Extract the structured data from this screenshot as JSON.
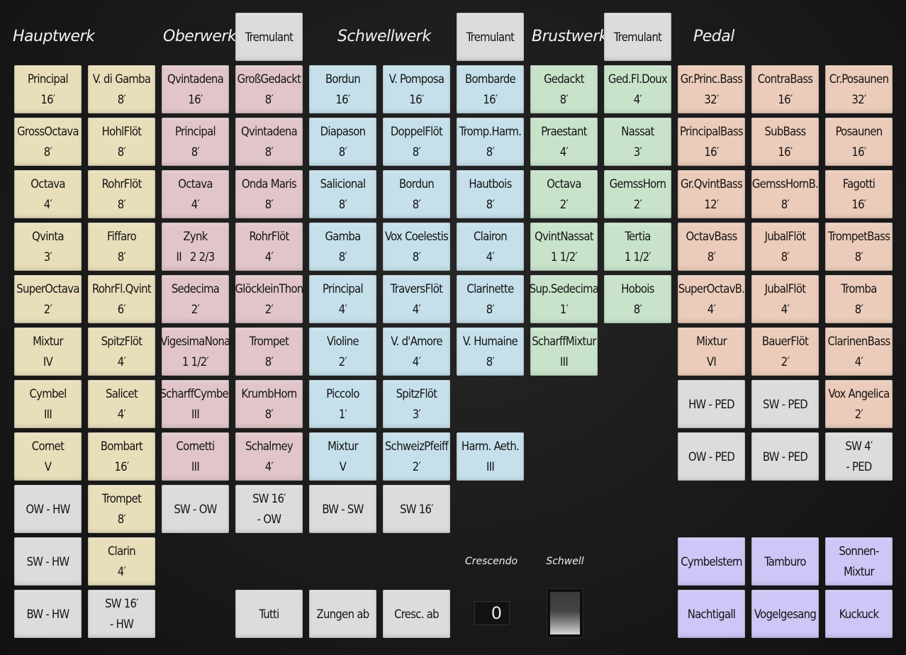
{
  "headers": [
    {
      "id": "hw",
      "text": "Hauptwerk"
    },
    {
      "id": "ow",
      "text": "Oberwerk"
    },
    {
      "id": "sw",
      "text": "Schwellwerk"
    },
    {
      "id": "bw",
      "text": "Brustwerk"
    },
    {
      "id": "ped",
      "text": "Pedal"
    }
  ],
  "tremulants": [
    {
      "label": "Tremulant"
    },
    {
      "label": "Tremulant"
    },
    {
      "label": "Tremulant"
    }
  ],
  "stops": [
    {
      "col": 0,
      "row": 0,
      "color": "yellow",
      "lines": [
        "Principal",
        "16′"
      ]
    },
    {
      "col": 0,
      "row": 1,
      "color": "yellow",
      "lines": [
        "GrossOctava",
        "8′"
      ]
    },
    {
      "col": 0,
      "row": 2,
      "color": "yellow",
      "lines": [
        "Octava",
        "4′"
      ]
    },
    {
      "col": 0,
      "row": 3,
      "color": "yellow",
      "lines": [
        "Qvinta",
        "3′"
      ]
    },
    {
      "col": 0,
      "row": 4,
      "color": "yellow",
      "lines": [
        "SuperOctava",
        "2′"
      ]
    },
    {
      "col": 0,
      "row": 5,
      "color": "yellow",
      "lines": [
        "Mixtur",
        "IV"
      ]
    },
    {
      "col": 0,
      "row": 6,
      "color": "yellow",
      "lines": [
        "Cymbel",
        "III"
      ]
    },
    {
      "col": 0,
      "row": 7,
      "color": "yellow",
      "lines": [
        "Cornet",
        "V"
      ]
    },
    {
      "col": 0,
      "row": 8,
      "color": "gray",
      "lines": [
        "OW - HW"
      ]
    },
    {
      "col": 0,
      "row": 9,
      "color": "gray",
      "lines": [
        "SW - HW"
      ]
    },
    {
      "col": 0,
      "row": 10,
      "color": "gray",
      "lines": [
        "BW - HW"
      ]
    },
    {
      "col": 1,
      "row": 0,
      "color": "yellow",
      "lines": [
        "V. di Gamba",
        "8′"
      ]
    },
    {
      "col": 1,
      "row": 1,
      "color": "yellow",
      "lines": [
        "HohlFlöt",
        "8′"
      ]
    },
    {
      "col": 1,
      "row": 2,
      "color": "yellow",
      "lines": [
        "RohrFlöt",
        "8′"
      ]
    },
    {
      "col": 1,
      "row": 3,
      "color": "yellow",
      "lines": [
        "Fiffaro",
        "8′"
      ]
    },
    {
      "col": 1,
      "row": 4,
      "color": "yellow",
      "lines": [
        "RohrFl.Qvint",
        "6′"
      ]
    },
    {
      "col": 1,
      "row": 5,
      "color": "yellow",
      "lines": [
        "SpitzFlöt",
        "4′"
      ]
    },
    {
      "col": 1,
      "row": 6,
      "color": "yellow",
      "lines": [
        "Salicet",
        "4′"
      ]
    },
    {
      "col": 1,
      "row": 7,
      "color": "yellow",
      "lines": [
        "Bombart",
        "16′"
      ]
    },
    {
      "col": 1,
      "row": 8,
      "color": "yellow",
      "lines": [
        "Trompet",
        "8′"
      ]
    },
    {
      "col": 1,
      "row": 9,
      "color": "yellow",
      "lines": [
        "Clarin",
        "4′"
      ]
    },
    {
      "col": 1,
      "row": 10,
      "color": "gray",
      "lines": [
        "SW 16′",
        "- HW"
      ]
    },
    {
      "col": 2,
      "row": 0,
      "color": "pink",
      "lines": [
        "Qvintadena",
        "16′"
      ]
    },
    {
      "col": 2,
      "row": 1,
      "color": "pink",
      "lines": [
        "Principal",
        "8′"
      ]
    },
    {
      "col": 2,
      "row": 2,
      "color": "pink",
      "lines": [
        "Octava",
        "4′"
      ]
    },
    {
      "col": 2,
      "row": 3,
      "color": "pink",
      "lines": [
        "Zynk",
        "II   2 2/3"
      ]
    },
    {
      "col": 2,
      "row": 4,
      "color": "pink",
      "lines": [
        "Sedecima",
        "2′"
      ]
    },
    {
      "col": 2,
      "row": 5,
      "color": "pink",
      "lines": [
        "VigesimaNona",
        "1 1/2′"
      ]
    },
    {
      "col": 2,
      "row": 6,
      "color": "pink",
      "lines": [
        "ScharffCymbel",
        "III"
      ]
    },
    {
      "col": 2,
      "row": 7,
      "color": "pink",
      "lines": [
        "Cornetti",
        "III"
      ]
    },
    {
      "col": 2,
      "row": 8,
      "color": "gray",
      "lines": [
        "SW - OW"
      ]
    },
    {
      "col": 3,
      "row": 0,
      "color": "pink",
      "lines": [
        "GroßGedackt",
        "8′"
      ]
    },
    {
      "col": 3,
      "row": 1,
      "color": "pink",
      "lines": [
        "Qvintadena",
        "8′"
      ]
    },
    {
      "col": 3,
      "row": 2,
      "color": "pink",
      "lines": [
        "Onda Maris",
        "8′"
      ]
    },
    {
      "col": 3,
      "row": 3,
      "color": "pink",
      "lines": [
        "RohrFlöt",
        "4′"
      ]
    },
    {
      "col": 3,
      "row": 4,
      "color": "pink",
      "lines": [
        "GlöckleinThon",
        "2′"
      ]
    },
    {
      "col": 3,
      "row": 5,
      "color": "pink",
      "lines": [
        "Trompet",
        "8′"
      ]
    },
    {
      "col": 3,
      "row": 6,
      "color": "pink",
      "lines": [
        "KrumbHorn",
        "8′"
      ]
    },
    {
      "col": 3,
      "row": 7,
      "color": "pink",
      "lines": [
        "Schalmey",
        "4′"
      ]
    },
    {
      "col": 3,
      "row": 8,
      "color": "gray",
      "lines": [
        "SW 16′",
        "- OW"
      ]
    },
    {
      "col": 3,
      "row": 10,
      "color": "gray",
      "lines": [
        "Tutti"
      ]
    },
    {
      "col": 4,
      "row": 0,
      "color": "blue",
      "lines": [
        "Bordun",
        "16′"
      ]
    },
    {
      "col": 4,
      "row": 1,
      "color": "blue",
      "lines": [
        "Diapason",
        "8′"
      ]
    },
    {
      "col": 4,
      "row": 2,
      "color": "blue",
      "lines": [
        "Salicional",
        "8′"
      ]
    },
    {
      "col": 4,
      "row": 3,
      "color": "blue",
      "lines": [
        "Gamba",
        "8′"
      ]
    },
    {
      "col": 4,
      "row": 4,
      "color": "blue",
      "lines": [
        "Principal",
        "4′"
      ]
    },
    {
      "col": 4,
      "row": 5,
      "color": "blue",
      "lines": [
        "Violine",
        "2′"
      ]
    },
    {
      "col": 4,
      "row": 6,
      "color": "blue",
      "lines": [
        "Piccolo",
        "1′"
      ]
    },
    {
      "col": 4,
      "row": 7,
      "color": "blue",
      "lines": [
        "Mixtur",
        "V"
      ]
    },
    {
      "col": 4,
      "row": 8,
      "color": "gray",
      "lines": [
        "BW - SW"
      ]
    },
    {
      "col": 4,
      "row": 10,
      "color": "gray",
      "lines": [
        "Zungen ab"
      ]
    },
    {
      "col": 5,
      "row": 0,
      "color": "blue",
      "lines": [
        "V. Pomposa",
        "16′"
      ]
    },
    {
      "col": 5,
      "row": 1,
      "color": "blue",
      "lines": [
        "DoppelFlöt",
        "8′"
      ]
    },
    {
      "col": 5,
      "row": 2,
      "color": "blue",
      "lines": [
        "Bordun",
        "8′"
      ]
    },
    {
      "col": 5,
      "row": 3,
      "color": "blue",
      "lines": [
        "Vox Coelestis",
        "8′"
      ]
    },
    {
      "col": 5,
      "row": 4,
      "color": "blue",
      "lines": [
        "TraversFlöt",
        "4′"
      ]
    },
    {
      "col": 5,
      "row": 5,
      "color": "blue",
      "lines": [
        "V. d'Amore",
        "4′"
      ]
    },
    {
      "col": 5,
      "row": 6,
      "color": "blue",
      "lines": [
        "SpitzFlöt",
        "3′"
      ]
    },
    {
      "col": 5,
      "row": 7,
      "color": "blue",
      "lines": [
        "SchweizPfeiff",
        "2′"
      ]
    },
    {
      "col": 5,
      "row": 8,
      "color": "gray",
      "lines": [
        "SW 16′"
      ]
    },
    {
      "col": 5,
      "row": 10,
      "color": "gray",
      "lines": [
        "Cresc. ab"
      ]
    },
    {
      "col": 6,
      "row": 0,
      "color": "blue",
      "lines": [
        "Bombarde",
        "16′"
      ]
    },
    {
      "col": 6,
      "row": 1,
      "color": "blue",
      "lines": [
        "Tromp.Harm.",
        "8′"
      ]
    },
    {
      "col": 6,
      "row": 2,
      "color": "blue",
      "lines": [
        "Hautbois",
        "8′"
      ]
    },
    {
      "col": 6,
      "row": 3,
      "color": "blue",
      "lines": [
        "Clairon",
        "4′"
      ]
    },
    {
      "col": 6,
      "row": 4,
      "color": "blue",
      "lines": [
        "Clarinette",
        "8′"
      ]
    },
    {
      "col": 6,
      "row": 5,
      "color": "blue",
      "lines": [
        "V. Humaine",
        "8′"
      ]
    },
    {
      "col": 6,
      "row": 7,
      "color": "blue",
      "lines": [
        "Harm. Aeth.",
        "III"
      ]
    },
    {
      "col": 7,
      "row": 0,
      "color": "green",
      "lines": [
        "Gedackt",
        "8′"
      ]
    },
    {
      "col": 7,
      "row": 1,
      "color": "green",
      "lines": [
        "Praestant",
        "4′"
      ]
    },
    {
      "col": 7,
      "row": 2,
      "color": "green",
      "lines": [
        "Octava",
        "2′"
      ]
    },
    {
      "col": 7,
      "row": 3,
      "color": "green",
      "lines": [
        "QvintNassat",
        "1 1/2′"
      ]
    },
    {
      "col": 7,
      "row": 4,
      "color": "green",
      "lines": [
        "Sup.Sedecima",
        "1′"
      ]
    },
    {
      "col": 7,
      "row": 5,
      "color": "green",
      "lines": [
        "ScharffMixtur",
        "III"
      ]
    },
    {
      "col": 8,
      "row": 0,
      "color": "green",
      "lines": [
        "Ged.Fl.Doux",
        "4′"
      ]
    },
    {
      "col": 8,
      "row": 1,
      "color": "green",
      "lines": [
        "Nassat",
        "3′"
      ]
    },
    {
      "col": 8,
      "row": 2,
      "color": "green",
      "lines": [
        "GemssHorn",
        "2′"
      ]
    },
    {
      "col": 8,
      "row": 3,
      "color": "green",
      "lines": [
        "Tertia",
        "1 1/2′"
      ]
    },
    {
      "col": 8,
      "row": 4,
      "color": "green",
      "lines": [
        "Hobois",
        "8′"
      ]
    },
    {
      "col": 9,
      "row": 0,
      "color": "salmon",
      "lines": [
        "Gr.Princ.Bass",
        "32′"
      ]
    },
    {
      "col": 9,
      "row": 1,
      "color": "salmon",
      "lines": [
        "PrincipalBass",
        "16′"
      ]
    },
    {
      "col": 9,
      "row": 2,
      "color": "salmon",
      "lines": [
        "Gr.QvintBass",
        "12′"
      ]
    },
    {
      "col": 9,
      "row": 3,
      "color": "salmon",
      "lines": [
        "OctavBass",
        "8′"
      ]
    },
    {
      "col": 9,
      "row": 4,
      "color": "salmon",
      "lines": [
        "SuperOctavB.",
        "4′"
      ]
    },
    {
      "col": 9,
      "row": 5,
      "color": "salmon",
      "lines": [
        "Mixtur",
        "VI"
      ]
    },
    {
      "col": 9,
      "row": 6,
      "color": "gray",
      "lines": [
        "HW - PED"
      ]
    },
    {
      "col": 9,
      "row": 7,
      "color": "gray",
      "lines": [
        "OW - PED"
      ]
    },
    {
      "col": 9,
      "row": 9,
      "color": "purple",
      "lines": [
        "Cymbelstern"
      ]
    },
    {
      "col": 9,
      "row": 10,
      "color": "purple",
      "lines": [
        "Nachtigall"
      ]
    },
    {
      "col": 10,
      "row": 0,
      "color": "salmon",
      "lines": [
        "ContraBass",
        "16′"
      ]
    },
    {
      "col": 10,
      "row": 1,
      "color": "salmon",
      "lines": [
        "SubBass",
        "16′"
      ]
    },
    {
      "col": 10,
      "row": 2,
      "color": "salmon",
      "lines": [
        "GemssHornB.",
        "8′"
      ]
    },
    {
      "col": 10,
      "row": 3,
      "color": "salmon",
      "lines": [
        "JubalFlöt",
        "8′"
      ]
    },
    {
      "col": 10,
      "row": 4,
      "color": "salmon",
      "lines": [
        "JubalFlöt",
        "4′"
      ]
    },
    {
      "col": 10,
      "row": 5,
      "color": "salmon",
      "lines": [
        "BauerFlöt",
        "2′"
      ]
    },
    {
      "col": 10,
      "row": 6,
      "color": "gray",
      "lines": [
        "SW - PED"
      ]
    },
    {
      "col": 10,
      "row": 7,
      "color": "gray",
      "lines": [
        "BW - PED"
      ]
    },
    {
      "col": 10,
      "row": 9,
      "color": "purple",
      "lines": [
        "Tamburo"
      ]
    },
    {
      "col": 10,
      "row": 10,
      "color": "purple",
      "lines": [
        "Vogelgesang"
      ]
    },
    {
      "col": 11,
      "row": 0,
      "color": "salmon",
      "lines": [
        "Cr.Posaunen",
        "32′"
      ]
    },
    {
      "col": 11,
      "row": 1,
      "color": "salmon",
      "lines": [
        "Posaunen",
        "16′"
      ]
    },
    {
      "col": 11,
      "row": 2,
      "color": "salmon",
      "lines": [
        "Fagotti",
        "16′"
      ]
    },
    {
      "col": 11,
      "row": 3,
      "color": "salmon",
      "lines": [
        "TrompetBass",
        "8′"
      ]
    },
    {
      "col": 11,
      "row": 4,
      "color": "salmon",
      "lines": [
        "Tromba",
        "8′"
      ]
    },
    {
      "col": 11,
      "row": 5,
      "color": "salmon",
      "lines": [
        "ClarinenBass",
        "4′"
      ]
    },
    {
      "col": 11,
      "row": 6,
      "color": "salmon",
      "lines": [
        "Vox Angelica",
        "2′"
      ]
    },
    {
      "col": 11,
      "row": 7,
      "color": "gray",
      "lines": [
        "SW 4′",
        "- PED"
      ]
    },
    {
      "col": 11,
      "row": 9,
      "color": "purple",
      "lines": [
        "Sonnen-",
        "Mixtur"
      ]
    },
    {
      "col": 11,
      "row": 10,
      "color": "purple",
      "lines": [
        "Kuckuck"
      ]
    }
  ],
  "crescendo": {
    "label": "Crescendo",
    "value": "0"
  },
  "schwell": {
    "label": "Schwell"
  }
}
